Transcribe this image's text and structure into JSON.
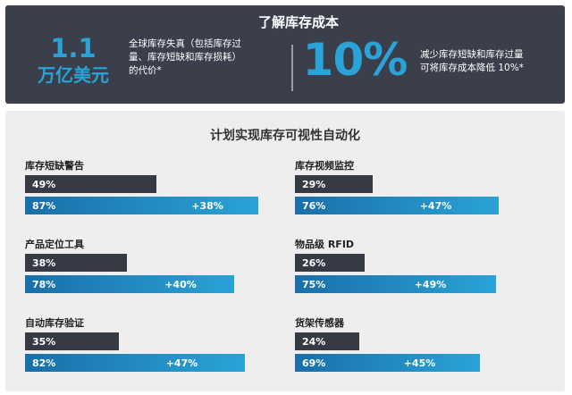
{
  "header": {
    "title": "了解库存成本",
    "stat_value": "1.1",
    "stat_unit": "万亿美元",
    "stat_desc_lines": [
      "全球库存失真（包括库存过",
      "量、库存短缺和库存损耗）",
      "的代价*"
    ],
    "percent_value": "10%",
    "percent_desc_lines": [
      "减少库存短缺和库存过量",
      "可将库存成本降低 10%*"
    ]
  },
  "colors": {
    "dark_panel": "#3a3f4b",
    "accent_blue": "#29a3d8",
    "current_bar": "#353a44",
    "planned_bar_dark": "#1a6fa8",
    "planned_bar_light": "#2aa3d6",
    "panel_bg": "#eeeeee"
  },
  "chart_data": {
    "type": "bar",
    "title": "计划实现库存可视性自动化",
    "series": [
      {
        "values": [
          49,
          38,
          35,
          29,
          26,
          24
        ]
      },
      {
        "values": [
          87,
          78,
          82,
          76,
          75,
          69
        ]
      }
    ],
    "categories": [
      "库存短缺警告",
      "产品定位工具",
      "自动库存验证",
      "库存视频监控",
      "物品级 RFID",
      "货架传感器"
    ],
    "value_labels_current": [
      "49%",
      "38%",
      "35%",
      "29%",
      "26%",
      "24%"
    ],
    "value_labels_planned": [
      "87%",
      "78%",
      "82%",
      "76%",
      "75%",
      "69%"
    ],
    "increase_labels": [
      "+38%",
      "+40%",
      "+47%",
      "+47%",
      "+49%",
      "+45%"
    ],
    "xlim": [
      0,
      100
    ]
  }
}
